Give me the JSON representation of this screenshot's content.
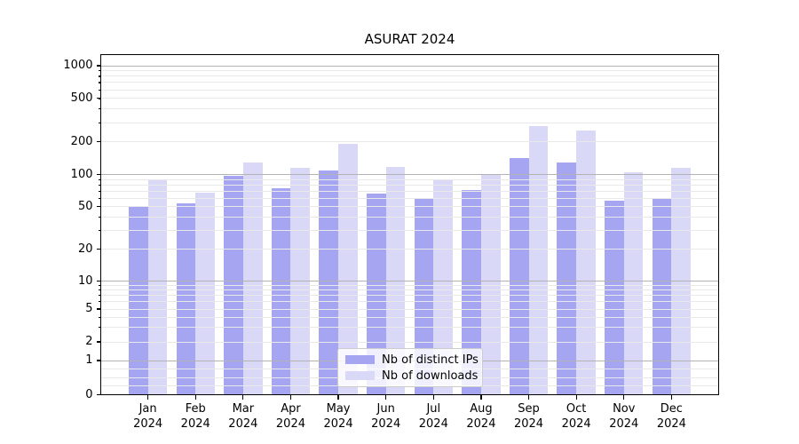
{
  "title": "ASURAT 2024",
  "chart_data": {
    "type": "bar",
    "title": "ASURAT 2024",
    "categories": [
      "Jan",
      "Feb",
      "Mar",
      "Apr",
      "May",
      "Jun",
      "Jul",
      "Aug",
      "Sep",
      "Oct",
      "Nov",
      "Dec"
    ],
    "x_year": "2024",
    "series": [
      {
        "name": "Nb of distinct IPs",
        "color": "#a5a5f1",
        "values": [
          50,
          54,
          97,
          75,
          110,
          66,
          60,
          72,
          143,
          130,
          57,
          59
        ]
      },
      {
        "name": "Nb of downloads",
        "color": "#d9d9f7",
        "values": [
          90,
          68,
          129,
          115,
          193,
          118,
          90,
          101,
          277,
          253,
          106,
          115
        ]
      }
    ],
    "yscale": "symlog",
    "yticks": [
      1000,
      500,
      200,
      100,
      50,
      20,
      10,
      5,
      2,
      1,
      0
    ],
    "ylim": [
      0,
      1300
    ],
    "grid": true,
    "legend_position": "lower-center",
    "colors": {
      "major_grid": "#b3b3b3",
      "minor_grid": "#e9e9e9",
      "axis": "#000000",
      "background": "#ffffff"
    }
  }
}
